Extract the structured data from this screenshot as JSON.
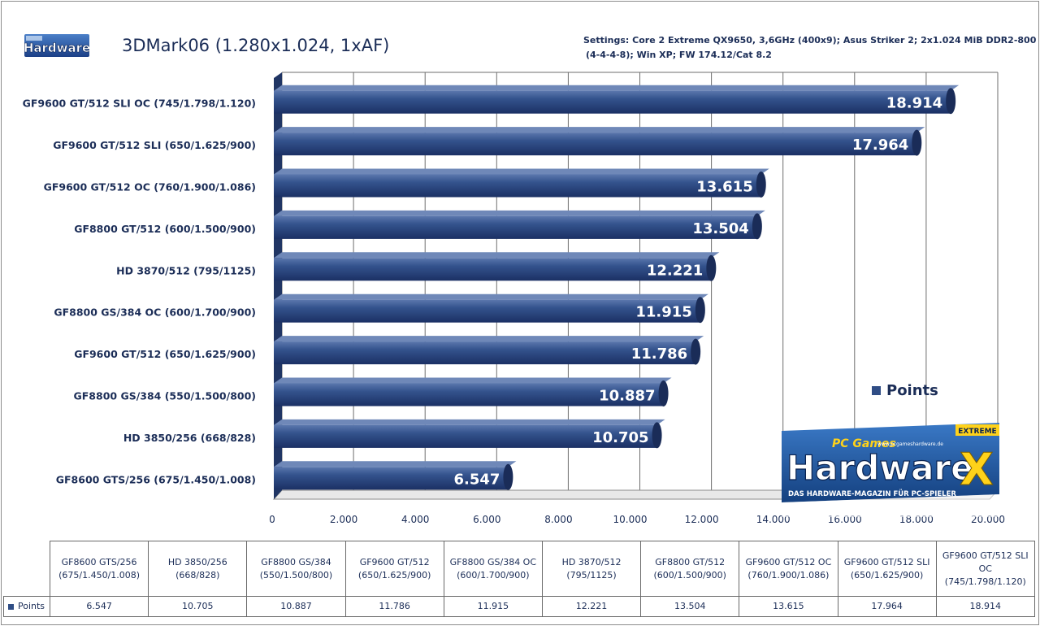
{
  "logo_small_text": "Hardware",
  "title": "3DMark06 (1.280x1.024, 1xAF)",
  "settings_line1": "Settings: Core 2 Extreme QX9650, 3,6GHz (400x9); Asus Striker 2; 2x1.024 MiB DDR2-800",
  "settings_line2": "(4-4-4-8); Win XP; FW 174.12/Cat 8.2",
  "legend_label": "Points",
  "logo_big": {
    "prefix": "PC Games",
    "url": "www.pcgameshardware.de",
    "word": "Hardware",
    "badge": "EXTREME",
    "letter": "X",
    "tagline": "DAS HARDWARE-MAGAZIN FÜR PC-SPIELER"
  },
  "colors": {
    "bar": "#2f4d85",
    "bar_light": "#4f6da3",
    "bar_dark": "#16284f",
    "grid": "#6e6e6e",
    "text": "#1b2d57"
  },
  "chart_data": {
    "type": "bar",
    "orientation": "horizontal",
    "title": "3DMark06 (1.280x1.024, 1xAF)",
    "series": [
      {
        "name": "Points",
        "categories": [
          "GF9600 GT/512  SLI OC (745/1.798/1.120)",
          "GF9600 GT/512  SLI (650/1.625/900)",
          "GF9600 GT/512  OC (760/1.900/1.086)",
          "GF8800 GT/512  (600/1.500/900)",
          "HD 3870/512  (795/1125)",
          "GF8800 GS/384  OC (600/1.700/900)",
          "GF9600 GT/512  (650/1.625/900)",
          "GF8800 GS/384  (550/1.500/800)",
          "HD 3850/256  (668/828)",
          "GF8600 GTS/256  (675/1.450/1.008)"
        ],
        "values": [
          18914,
          17964,
          13615,
          13504,
          12221,
          11915,
          11786,
          10887,
          10705,
          6547
        ],
        "value_labels": [
          "18.914",
          "17.964",
          "13.615",
          "13.504",
          "12.221",
          "11.915",
          "11.786",
          "10.887",
          "10.705",
          "6.547"
        ]
      }
    ],
    "xlim": [
      0,
      20000
    ],
    "xticks": [
      0,
      2000,
      4000,
      6000,
      8000,
      10000,
      12000,
      14000,
      16000,
      18000,
      20000
    ],
    "xtick_labels": [
      "0",
      "2.000",
      "4.000",
      "6.000",
      "8.000",
      "10.000",
      "12.000",
      "14.000",
      "16.000",
      "18.000",
      "20.000"
    ],
    "grid": "vertical",
    "legend": "right"
  },
  "table": {
    "row_label": "Points",
    "columns": [
      {
        "line1": "GF8600 GTS/256",
        "line2": "(675/1.450/1.008)",
        "value": "6.547"
      },
      {
        "line1": "HD 3850/256",
        "line2": "(668/828)",
        "value": "10.705"
      },
      {
        "line1": "GF8800 GS/384",
        "line2": "(550/1.500/800)",
        "value": "10.887"
      },
      {
        "line1": "GF9600 GT/512",
        "line2": "(650/1.625/900)",
        "value": "11.786"
      },
      {
        "line1": "GF8800 GS/384 OC",
        "line2": "(600/1.700/900)",
        "value": "11.915"
      },
      {
        "line1": "HD 3870/512",
        "line2": "(795/1125)",
        "value": "12.221"
      },
      {
        "line1": "GF8800 GT/512",
        "line2": "(600/1.500/900)",
        "value": "13.504"
      },
      {
        "line1": "GF9600 GT/512 OC",
        "line2": "(760/1.900/1.086)",
        "value": "13.615"
      },
      {
        "line1": "GF9600 GT/512 SLI",
        "line2": "(650/1.625/900)",
        "value": "17.964"
      },
      {
        "line1": "GF9600 GT/512 SLI",
        "line2": "OC",
        "line3": "(745/1.798/1.120)",
        "value": "18.914"
      }
    ]
  }
}
